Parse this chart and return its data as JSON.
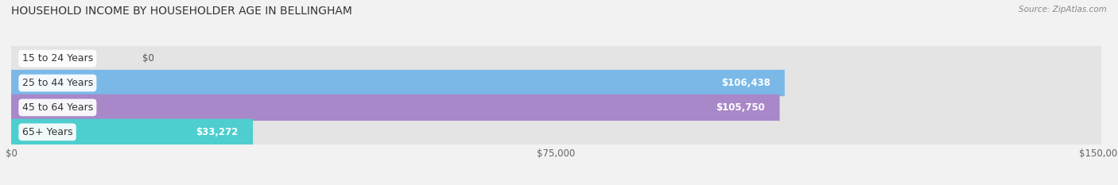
{
  "title": "HOUSEHOLD INCOME BY HOUSEHOLDER AGE IN BELLINGHAM",
  "source": "Source: ZipAtlas.com",
  "categories": [
    "15 to 24 Years",
    "25 to 44 Years",
    "45 to 64 Years",
    "65+ Years"
  ],
  "values": [
    0,
    106438,
    105750,
    33272
  ],
  "bar_colors": [
    "#f0a0a8",
    "#7ab8e8",
    "#a888c8",
    "#4ecece"
  ],
  "value_labels": [
    "$0",
    "$106,438",
    "$105,750",
    "$33,272"
  ],
  "xlim_max": 150000,
  "xticks": [
    0,
    75000,
    150000
  ],
  "xtick_labels": [
    "$0",
    "$75,000",
    "$150,000"
  ],
  "bg_color": "#f2f2f2",
  "bar_bg_color": "#e4e4e4",
  "title_fontsize": 10,
  "source_fontsize": 7.5,
  "label_fontsize": 9,
  "value_fontsize": 8.5,
  "tick_fontsize": 8.5
}
